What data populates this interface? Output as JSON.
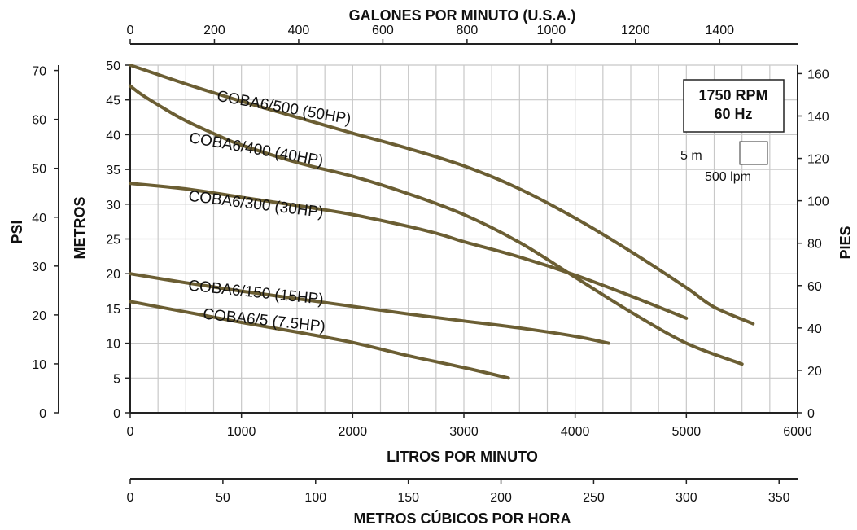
{
  "chart_data": {
    "type": "line",
    "title": "",
    "x_axes": {
      "bottom": {
        "label": "LITROS POR MINUTO",
        "range": [
          0,
          6000
        ],
        "ticks": [
          "0",
          "1000",
          "2000",
          "3000",
          "4000",
          "5000",
          "6000"
        ]
      },
      "top": {
        "label": "GALONES POR MINUTO (U.S.A.)",
        "range": [
          0,
          1585
        ],
        "ticks": [
          "0",
          "200",
          "400",
          "600",
          "800",
          "1000",
          "1200",
          "1400"
        ]
      },
      "extra_bottom": {
        "label": "METROS CÚBICOS POR HORA",
        "range": [
          0,
          360
        ],
        "ticks": [
          "0",
          "50",
          "100",
          "150",
          "200",
          "250",
          "300",
          "350"
        ]
      }
    },
    "y_axes": {
      "metros": {
        "label": "METROS",
        "range": [
          0,
          50
        ],
        "ticks": [
          "0",
          "5",
          "10",
          "15",
          "20",
          "25",
          "30",
          "35",
          "40",
          "45",
          "50"
        ]
      },
      "psi": {
        "label": "PSI",
        "range": [
          0,
          71.1
        ],
        "ticks": [
          "0",
          "10",
          "20",
          "30",
          "40",
          "50",
          "60",
          "70"
        ]
      },
      "pies": {
        "label": "PIES",
        "range": [
          0,
          164
        ],
        "ticks": [
          "0",
          "20",
          "40",
          "60",
          "80",
          "100",
          "120",
          "140",
          "160"
        ]
      }
    },
    "grid": true,
    "series": [
      {
        "name": "COBA6/500 (50HP)",
        "x": [
          0,
          500,
          1000,
          1500,
          2000,
          2500,
          3000,
          3500,
          4000,
          4500,
          5000,
          5250,
          5600
        ],
        "y": [
          50,
          47.3,
          44.8,
          42.5,
          40.2,
          38,
          35.5,
          32.2,
          28,
          23.2,
          18,
          15.2,
          12.8
        ]
      },
      {
        "name": "COBA6/400 (40HP)",
        "x": [
          0,
          100,
          300,
          500,
          800,
          1000,
          1500,
          2000,
          2500,
          3000,
          3500,
          4000,
          4500,
          5000,
          5500
        ],
        "y": [
          47,
          45.8,
          43.8,
          42,
          39.8,
          38.5,
          36,
          34,
          31.5,
          28.5,
          24.5,
          19.5,
          14.5,
          10,
          7
        ]
      },
      {
        "name": "COBA6/300 (30HP)",
        "x": [
          0,
          500,
          1000,
          1500,
          2000,
          2500,
          2800,
          3000,
          3500,
          4000,
          4500,
          5000
        ],
        "y": [
          33,
          32.2,
          31,
          29.8,
          28.5,
          26.8,
          25.6,
          24.6,
          22.4,
          19.8,
          16.8,
          13.6
        ]
      },
      {
        "name": "COBA6/150 (15HP)",
        "x": [
          0,
          500,
          1000,
          1500,
          2000,
          2500,
          3000,
          3500,
          4000,
          4300
        ],
        "y": [
          20,
          18.7,
          17.5,
          16.4,
          15.3,
          14.2,
          13.2,
          12.2,
          11,
          10
        ]
      },
      {
        "name": "COBA6/5 (7.5HP)",
        "x": [
          0,
          500,
          1000,
          1500,
          2000,
          2500,
          3000,
          3400
        ],
        "y": [
          16,
          14.5,
          13,
          11.6,
          10.1,
          8.2,
          6.5,
          5
        ]
      }
    ],
    "series_color": "#6b5e33",
    "grid_color": "#c8c8c8",
    "badge": {
      "line1": "1750 RPM",
      "line2": "60 Hz"
    },
    "scale_legend": {
      "head": "5 m",
      "flow": "500 lpm"
    }
  }
}
